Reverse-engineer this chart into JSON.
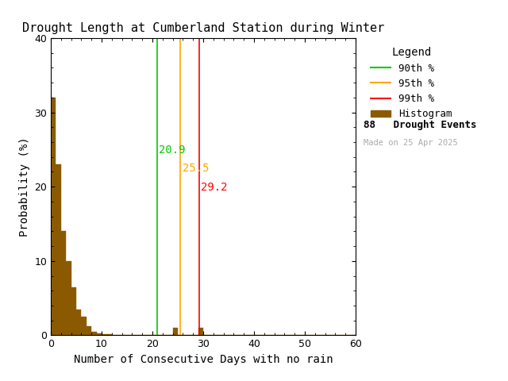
{
  "title": "Drought Length at Cumberland Station during Winter",
  "xlabel": "Number of Consecutive Days with no rain",
  "ylabel": "Probability (%)",
  "xlim": [
    0,
    60
  ],
  "ylim": [
    0,
    40
  ],
  "xticks": [
    0,
    10,
    20,
    30,
    40,
    50,
    60
  ],
  "yticks": [
    0,
    10,
    20,
    30,
    40
  ],
  "bar_color": "#8B5A00",
  "bar_edgecolor": "#8B5A00",
  "percentile_90": 20.9,
  "percentile_95": 25.5,
  "percentile_99": 29.2,
  "percentile_90_color": "#00CC00",
  "percentile_95_color": "#FFA500",
  "percentile_99_color": "#FF0000",
  "drought_events": 88,
  "made_on": "Made on 25 Apr 2025",
  "made_on_color": "#AAAAAA",
  "bin_width": 1,
  "bar_values": [
    32.0,
    23.0,
    14.0,
    10.0,
    6.5,
    3.5,
    2.5,
    1.2,
    0.5,
    0.3,
    0.2,
    0.1,
    0.0,
    0.0,
    0.0,
    0.0,
    0.0,
    0.0,
    0.0,
    0.0,
    0.0,
    0.0,
    0.0,
    0.0,
    1.0,
    0.0,
    0.0,
    0.0,
    0.0,
    1.0,
    0.0,
    0.0,
    0.0,
    0.0,
    0.0,
    0.0,
    0.0,
    0.0,
    0.0,
    0.0,
    0.0,
    0.0,
    0.0,
    0.0,
    0.0,
    0.0,
    0.0,
    0.0,
    0.0,
    0.0,
    0.0,
    0.0,
    0.0,
    0.0,
    0.0,
    0.0,
    0.0,
    0.0,
    0.0,
    0.0
  ],
  "background_color": "#FFFFFF",
  "title_fontsize": 11,
  "axis_fontsize": 10,
  "tick_fontsize": 9,
  "legend_fontsize": 9,
  "annotation_fontsize": 10
}
